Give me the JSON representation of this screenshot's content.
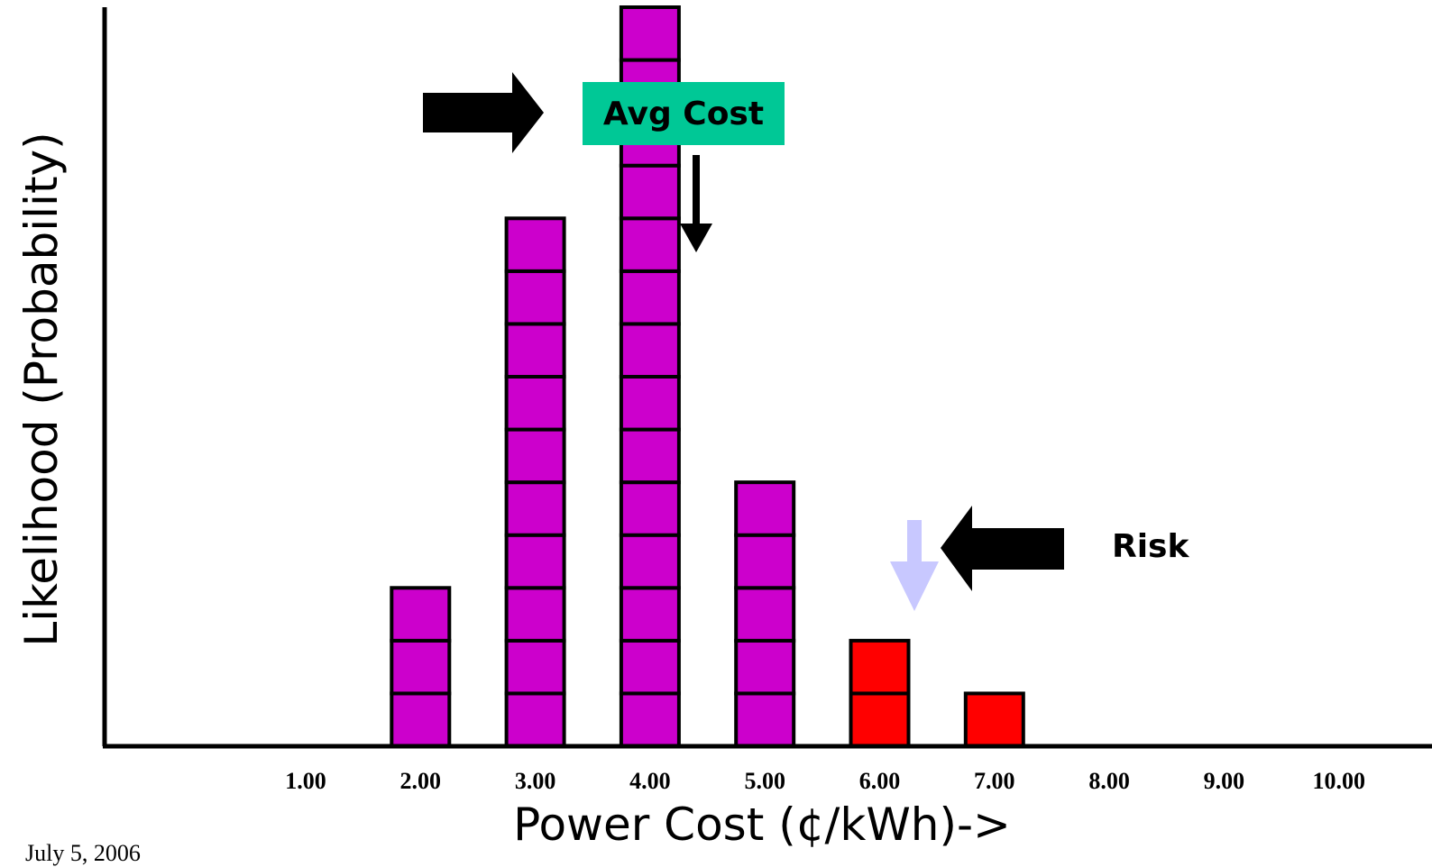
{
  "chart_data": {
    "type": "bar",
    "categories": [
      "1.00",
      "2.00",
      "3.00",
      "4.00",
      "5.00",
      "6.00",
      "7.00",
      "8.00",
      "9.00",
      "10.00"
    ],
    "values": [
      0,
      3,
      10,
      14,
      5,
      2,
      1,
      0,
      0,
      0
    ],
    "bar_colors": [
      "#cc00cc",
      "#cc00cc",
      "#cc00cc",
      "#cc00cc",
      "#cc00cc",
      "#ff0000",
      "#ff0000",
      "#cc00cc",
      "#cc00cc",
      "#cc00cc"
    ],
    "xlabel": "Power Cost (¢/kWh)->",
    "ylabel": "Likelihood (Probability)",
    "ylim": [
      0,
      14
    ],
    "grid": false,
    "annotations": {
      "avg_cost": "Avg Cost",
      "risk": "Risk"
    }
  },
  "footer": {
    "date": "July 5, 2006"
  },
  "colors": {
    "bar": "#cc00cc",
    "risk_bar": "#ff0000",
    "avg_box": "#00c896",
    "risk_arrow": "#c8c8ff"
  }
}
